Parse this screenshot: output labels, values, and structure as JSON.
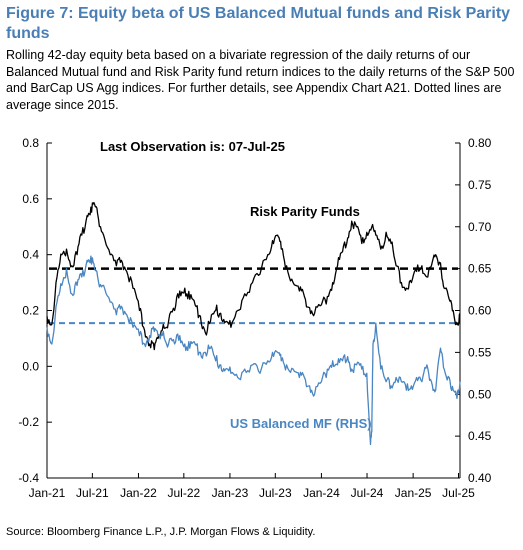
{
  "title": "Figure 7: Equity beta of US Balanced Mutual funds and Risk Parity funds",
  "caption": "Rolling 42-day equity beta based on a bivariate regression of the daily returns of our Balanced Mutual fund and Risk Parity fund return indices to the daily returns of the S&P 500 and BarCap US Agg indices. For further details, see Appendix Chart A21. Dotted lines are average since 2015.",
  "source": "Source: Bloomberg Finance L.P., J.P. Morgan Flows & Liquidity.",
  "colors": {
    "title": "#4a7fb5",
    "risk_parity": "#000000",
    "balanced_mf": "#4a86c2"
  },
  "chart_data": {
    "type": "line",
    "annotation_last_obs": "Last Observation is: 07-Jul-25",
    "x_ticks": [
      "Jan-21",
      "Jul-21",
      "Jan-22",
      "Jul-22",
      "Jan-23",
      "Jul-23",
      "Jan-24",
      "Jul-24",
      "Jan-25",
      "Jul-25"
    ],
    "x_range": [
      "2021-01-01",
      "2025-07-07"
    ],
    "y_left": {
      "min": -0.4,
      "max": 0.8,
      "ticks": [
        "0.8",
        "0.6",
        "0.4",
        "0.2",
        "0.0",
        "-0.2",
        "-0.4"
      ]
    },
    "y_right": {
      "min": 0.4,
      "max": 0.8,
      "ticks": [
        "0.80",
        "0.75",
        "0.70",
        "0.65",
        "0.60",
        "0.55",
        "0.50",
        "0.45",
        "0.40"
      ]
    },
    "grid": false,
    "series": [
      {
        "name": "Risk Parity Funds",
        "axis": "left",
        "average_since_2015": 0.35,
        "points": [
          [
            "2021-01-01",
            0.18
          ],
          [
            "2021-01-20",
            0.15
          ],
          [
            "2021-02-10",
            0.32
          ],
          [
            "2021-03-01",
            0.4
          ],
          [
            "2021-03-20",
            0.42
          ],
          [
            "2021-04-10",
            0.36
          ],
          [
            "2021-05-01",
            0.4
          ],
          [
            "2021-05-20",
            0.47
          ],
          [
            "2021-06-10",
            0.54
          ],
          [
            "2021-06-25",
            0.57
          ],
          [
            "2021-07-10",
            0.58
          ],
          [
            "2021-07-25",
            0.53
          ],
          [
            "2021-08-15",
            0.47
          ],
          [
            "2021-09-10",
            0.4
          ],
          [
            "2021-10-05",
            0.36
          ],
          [
            "2021-10-25",
            0.38
          ],
          [
            "2021-11-15",
            0.34
          ],
          [
            "2021-12-10",
            0.28
          ],
          [
            "2022-01-05",
            0.2
          ],
          [
            "2022-01-25",
            0.13
          ],
          [
            "2022-02-15",
            0.08
          ],
          [
            "2022-03-05",
            0.06
          ],
          [
            "2022-03-20",
            0.1
          ],
          [
            "2022-04-10",
            0.15
          ],
          [
            "2022-05-01",
            0.16
          ],
          [
            "2022-05-25",
            0.2
          ],
          [
            "2022-06-15",
            0.27
          ],
          [
            "2022-07-05",
            0.28
          ],
          [
            "2022-07-25",
            0.24
          ],
          [
            "2022-08-15",
            0.22
          ],
          [
            "2022-09-05",
            0.18
          ],
          [
            "2022-09-25",
            0.12
          ],
          [
            "2022-10-15",
            0.16
          ],
          [
            "2022-11-05",
            0.2
          ],
          [
            "2022-11-25",
            0.19
          ],
          [
            "2022-12-15",
            0.16
          ],
          [
            "2023-01-05",
            0.14
          ],
          [
            "2023-02-01",
            0.2
          ],
          [
            "2023-03-01",
            0.26
          ],
          [
            "2023-04-01",
            0.3
          ],
          [
            "2023-05-01",
            0.33
          ],
          [
            "2023-06-01",
            0.4
          ],
          [
            "2023-06-20",
            0.45
          ],
          [
            "2023-07-10",
            0.47
          ],
          [
            "2023-07-25",
            0.42
          ],
          [
            "2023-08-15",
            0.36
          ],
          [
            "2023-09-10",
            0.3
          ],
          [
            "2023-10-05",
            0.27
          ],
          [
            "2023-10-25",
            0.25
          ],
          [
            "2023-11-15",
            0.21
          ],
          [
            "2023-12-05",
            0.19
          ],
          [
            "2024-01-01",
            0.22
          ],
          [
            "2024-01-25",
            0.25
          ],
          [
            "2024-02-15",
            0.3
          ],
          [
            "2024-03-05",
            0.36
          ],
          [
            "2024-03-25",
            0.41
          ],
          [
            "2024-04-15",
            0.46
          ],
          [
            "2024-05-01",
            0.52
          ],
          [
            "2024-05-20",
            0.5
          ],
          [
            "2024-06-10",
            0.44
          ],
          [
            "2024-06-30",
            0.48
          ],
          [
            "2024-07-20",
            0.5
          ],
          [
            "2024-08-05",
            0.47
          ],
          [
            "2024-08-25",
            0.42
          ],
          [
            "2024-09-15",
            0.48
          ],
          [
            "2024-10-05",
            0.44
          ],
          [
            "2024-10-25",
            0.36
          ],
          [
            "2024-11-15",
            0.3
          ],
          [
            "2024-12-05",
            0.28
          ],
          [
            "2024-12-25",
            0.3
          ],
          [
            "2025-01-15",
            0.34
          ],
          [
            "2025-02-05",
            0.36
          ],
          [
            "2025-02-25",
            0.32
          ],
          [
            "2025-03-15",
            0.36
          ],
          [
            "2025-04-01",
            0.4
          ],
          [
            "2025-04-20",
            0.37
          ],
          [
            "2025-05-05",
            0.28
          ],
          [
            "2025-05-25",
            0.24
          ],
          [
            "2025-06-10",
            0.2
          ],
          [
            "2025-06-25",
            0.15
          ],
          [
            "2025-07-07",
            0.19
          ]
        ]
      },
      {
        "name": "US Balanced MF (RHS)",
        "axis": "right",
        "average_since_2015": 0.585,
        "points": [
          [
            "2021-01-01",
            0.58
          ],
          [
            "2021-01-20",
            0.56
          ],
          [
            "2021-02-10",
            0.61
          ],
          [
            "2021-03-01",
            0.63
          ],
          [
            "2021-03-20",
            0.65
          ],
          [
            "2021-04-10",
            0.62
          ],
          [
            "2021-05-01",
            0.63
          ],
          [
            "2021-05-20",
            0.64
          ],
          [
            "2021-06-10",
            0.66
          ],
          [
            "2021-06-25",
            0.665
          ],
          [
            "2021-07-10",
            0.65
          ],
          [
            "2021-07-25",
            0.635
          ],
          [
            "2021-08-15",
            0.63
          ],
          [
            "2021-09-10",
            0.61
          ],
          [
            "2021-10-05",
            0.595
          ],
          [
            "2021-10-25",
            0.605
          ],
          [
            "2021-11-15",
            0.595
          ],
          [
            "2021-12-10",
            0.58
          ],
          [
            "2022-01-05",
            0.57
          ],
          [
            "2022-01-25",
            0.56
          ],
          [
            "2022-02-15",
            0.57
          ],
          [
            "2022-03-05",
            0.575
          ],
          [
            "2022-03-20",
            0.57
          ],
          [
            "2022-04-10",
            0.575
          ],
          [
            "2022-05-01",
            0.56
          ],
          [
            "2022-05-25",
            0.56
          ],
          [
            "2022-06-15",
            0.57
          ],
          [
            "2022-07-05",
            0.56
          ],
          [
            "2022-07-25",
            0.555
          ],
          [
            "2022-08-15",
            0.56
          ],
          [
            "2022-09-05",
            0.55
          ],
          [
            "2022-09-25",
            0.55
          ],
          [
            "2022-10-15",
            0.555
          ],
          [
            "2022-11-05",
            0.54
          ],
          [
            "2022-11-25",
            0.535
          ],
          [
            "2022-12-15",
            0.53
          ],
          [
            "2023-01-05",
            0.525
          ],
          [
            "2023-02-01",
            0.52
          ],
          [
            "2023-03-01",
            0.53
          ],
          [
            "2023-04-01",
            0.535
          ],
          [
            "2023-05-01",
            0.525
          ],
          [
            "2023-06-01",
            0.54
          ],
          [
            "2023-06-20",
            0.55
          ],
          [
            "2023-07-10",
            0.55
          ],
          [
            "2023-07-25",
            0.54
          ],
          [
            "2023-08-15",
            0.535
          ],
          [
            "2023-09-10",
            0.53
          ],
          [
            "2023-10-05",
            0.52
          ],
          [
            "2023-10-25",
            0.52
          ],
          [
            "2023-11-15",
            0.51
          ],
          [
            "2023-12-05",
            0.5
          ],
          [
            "2024-01-01",
            0.515
          ],
          [
            "2024-01-25",
            0.53
          ],
          [
            "2024-02-15",
            0.54
          ],
          [
            "2024-03-05",
            0.535
          ],
          [
            "2024-03-25",
            0.54
          ],
          [
            "2024-04-15",
            0.545
          ],
          [
            "2024-05-01",
            0.53
          ],
          [
            "2024-05-20",
            0.535
          ],
          [
            "2024-06-10",
            0.53
          ],
          [
            "2024-06-30",
            0.525
          ],
          [
            "2024-07-15",
            0.44
          ],
          [
            "2024-07-20",
            0.455
          ],
          [
            "2024-07-25",
            0.56
          ],
          [
            "2024-08-05",
            0.585
          ],
          [
            "2024-08-25",
            0.53
          ],
          [
            "2024-09-15",
            0.515
          ],
          [
            "2024-10-05",
            0.51
          ],
          [
            "2024-10-25",
            0.52
          ],
          [
            "2024-11-15",
            0.515
          ],
          [
            "2024-12-05",
            0.505
          ],
          [
            "2024-12-25",
            0.51
          ],
          [
            "2025-01-15",
            0.52
          ],
          [
            "2025-02-05",
            0.515
          ],
          [
            "2025-02-25",
            0.535
          ],
          [
            "2025-03-15",
            0.515
          ],
          [
            "2025-04-01",
            0.505
          ],
          [
            "2025-04-20",
            0.555
          ],
          [
            "2025-05-05",
            0.53
          ],
          [
            "2025-05-25",
            0.52
          ],
          [
            "2025-06-10",
            0.505
          ],
          [
            "2025-06-25",
            0.495
          ],
          [
            "2025-07-07",
            0.515
          ]
        ]
      }
    ]
  }
}
